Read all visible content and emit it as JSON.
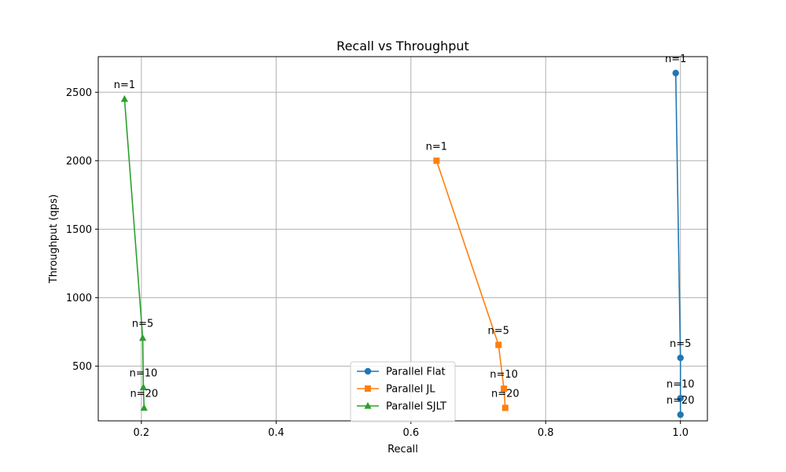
{
  "chart_data": {
    "type": "line",
    "title": "Recall vs Throughput",
    "xlabel": "Recall",
    "ylabel": "Throughput (qps)",
    "xlim": [
      0.136,
      1.04
    ],
    "ylim": [
      100,
      2760
    ],
    "xticks": [
      0.2,
      0.4,
      0.6,
      0.8,
      1.0
    ],
    "xtick_labels": [
      "0.2",
      "0.4",
      "0.6",
      "0.8",
      "1.0"
    ],
    "yticks": [
      500,
      1000,
      1500,
      2000,
      2500
    ],
    "ytick_labels": [
      "500",
      "1000",
      "1500",
      "2000",
      "2500"
    ],
    "grid": true,
    "legend_position": "lower-center",
    "series": [
      {
        "name": "Parallel Flat",
        "color": "#1f77b4",
        "marker": "circle",
        "x": [
          0.993,
          1.0,
          1.0,
          1.0
        ],
        "y": [
          2640,
          560,
          265,
          145
        ],
        "labels": [
          "n=1",
          "n=5",
          "n=10",
          "n=20"
        ]
      },
      {
        "name": "Parallel JL",
        "color": "#ff7f0e",
        "marker": "square",
        "x": [
          0.638,
          0.73,
          0.738,
          0.74
        ],
        "y": [
          2000,
          655,
          335,
          195
        ],
        "labels": [
          "n=1",
          "n=5",
          "n=10",
          "n=20"
        ]
      },
      {
        "name": "Parallel SJLT",
        "color": "#2ca02c",
        "marker": "triangle",
        "x": [
          0.175,
          0.202,
          0.203,
          0.204
        ],
        "y": [
          2450,
          705,
          345,
          195
        ],
        "labels": [
          "n=1",
          "n=5",
          "n=10",
          "n=20"
        ]
      }
    ]
  }
}
